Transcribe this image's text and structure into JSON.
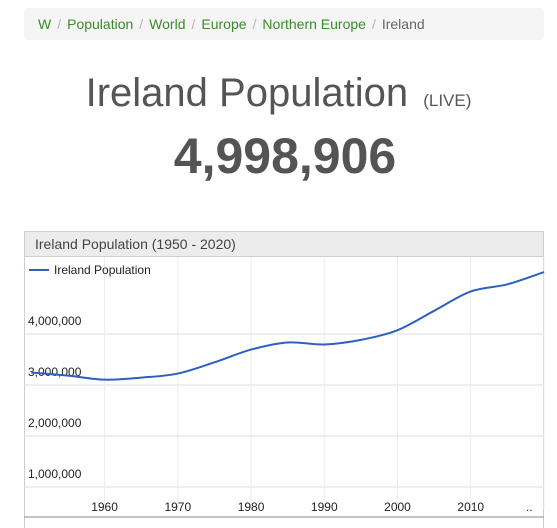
{
  "breadcrumb": {
    "items": [
      "W",
      "Population",
      "World",
      "Europe",
      "Northern Europe"
    ],
    "current": "Ireland",
    "separator": "/"
  },
  "title": {
    "main": "Ireland Population",
    "live": "(LIVE)"
  },
  "counter": "4,998,906",
  "colors": {
    "link": "#3a8b2a",
    "line": "#2f5fbf",
    "grid": "#dddddd"
  },
  "chart_data": {
    "type": "line",
    "title": "Ireland Population (1950 - 2020)",
    "xlabel": "",
    "ylabel": "",
    "legend": "top-left",
    "grid": true,
    "x_ticks": [
      "1960",
      "1970",
      "1980",
      "1990",
      "2000",
      "2010",
      ".."
    ],
    "y_ticks": [
      "1,000,000",
      "2,000,000",
      "3,000,000",
      "4,000,000"
    ],
    "xlim": [
      1949,
      2020
    ],
    "ylim": [
      0,
      5000000
    ],
    "series": [
      {
        "name": "Ireland Population",
        "x": [
          1950,
          1955,
          1960,
          1965,
          1970,
          1975,
          1980,
          1985,
          1990,
          1995,
          2000,
          2005,
          2010,
          2015,
          2020
        ],
        "y": [
          2970000,
          2910000,
          2830000,
          2870000,
          2950000,
          3170000,
          3420000,
          3560000,
          3520000,
          3610000,
          3800000,
          4180000,
          4560000,
          4700000,
          4940000
        ]
      }
    ]
  }
}
